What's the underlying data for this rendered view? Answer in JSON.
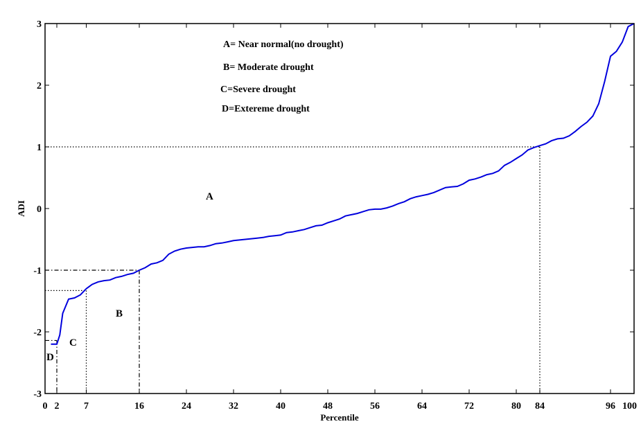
{
  "chart_data": {
    "type": "line",
    "xlabel": "Percentile",
    "ylabel": "ADI",
    "xlim": [
      0,
      100
    ],
    "ylim": [
      -3,
      3
    ],
    "x_ticks": [
      "0",
      "2",
      "7",
      "16",
      "24",
      "32",
      "40",
      "48",
      "56",
      "64",
      "72",
      "80",
      "84",
      "96",
      "100"
    ],
    "y_ticks": [
      "3",
      "2",
      "1",
      "0",
      "-1",
      "-2",
      "-3"
    ],
    "legend_text": [
      "A= Near normal(no drought)",
      "B= Moderate drought",
      "C=Severe drought",
      "D=Extereme drought"
    ],
    "region_labels": [
      "A",
      "B",
      "C",
      "D"
    ],
    "series": [
      {
        "color": "#0000dd",
        "x": [
          1,
          2,
          2.5,
          3,
          4,
          5,
          6,
          7,
          8,
          9,
          10,
          11,
          12,
          13,
          14,
          15,
          16,
          17,
          18,
          19,
          20,
          21,
          22,
          23,
          24,
          25,
          26,
          27,
          28,
          29,
          30,
          31,
          32,
          33,
          34,
          35,
          36,
          37,
          38,
          39,
          40,
          41,
          42,
          43,
          44,
          45,
          46,
          47,
          48,
          49,
          50,
          51,
          52,
          53,
          54,
          55,
          56,
          57,
          58,
          59,
          60,
          61,
          62,
          63,
          64,
          65,
          66,
          67,
          68,
          69,
          70,
          71,
          72,
          73,
          74,
          75,
          76,
          77,
          78,
          79,
          80,
          81,
          82,
          83,
          84,
          85,
          86,
          87,
          88,
          89,
          90,
          91,
          92,
          93,
          94,
          95,
          96,
          97,
          98,
          99,
          100
        ],
        "y": [
          -2.2,
          -2.2,
          -2.05,
          -1.7,
          -1.47,
          -1.45,
          -1.4,
          -1.3,
          -1.23,
          -1.19,
          -1.17,
          -1.16,
          -1.12,
          -1.1,
          -1.07,
          -1.05,
          -1.0,
          -0.96,
          -0.9,
          -0.88,
          -0.84,
          -0.74,
          -0.69,
          -0.66,
          -0.64,
          -0.63,
          -0.62,
          -0.62,
          -0.6,
          -0.57,
          -0.56,
          -0.54,
          -0.52,
          -0.51,
          -0.5,
          -0.49,
          -0.48,
          -0.47,
          -0.45,
          -0.44,
          -0.43,
          -0.39,
          -0.38,
          -0.36,
          -0.34,
          -0.31,
          -0.28,
          -0.27,
          -0.23,
          -0.2,
          -0.17,
          -0.12,
          -0.1,
          -0.08,
          -0.05,
          -0.02,
          -0.01,
          -0.01,
          0.01,
          0.04,
          0.08,
          0.11,
          0.16,
          0.19,
          0.21,
          0.23,
          0.26,
          0.3,
          0.34,
          0.35,
          0.36,
          0.4,
          0.46,
          0.48,
          0.51,
          0.55,
          0.57,
          0.61,
          0.7,
          0.75,
          0.81,
          0.87,
          0.95,
          0.99,
          1.02,
          1.05,
          1.1,
          1.13,
          1.14,
          1.18,
          1.25,
          1.33,
          1.4,
          1.5,
          1.7,
          2.06,
          2.47,
          2.55,
          2.7,
          2.95,
          3.0
        ]
      }
    ],
    "reference_lines": [
      {
        "style": "dotted",
        "from": [
          0,
          1
        ],
        "to": [
          84,
          1
        ]
      },
      {
        "style": "dotted",
        "from": [
          84,
          1
        ],
        "to": [
          84,
          -3
        ]
      },
      {
        "style": "dashdot",
        "from": [
          0,
          -1
        ],
        "to": [
          16,
          -1
        ]
      },
      {
        "style": "dashdot",
        "from": [
          16,
          -1
        ],
        "to": [
          16,
          -3
        ]
      },
      {
        "style": "dotted",
        "from": [
          0,
          -1.33
        ],
        "to": [
          7,
          -1.33
        ]
      },
      {
        "style": "dotted",
        "from": [
          7,
          -1.33
        ],
        "to": [
          7,
          -3
        ]
      },
      {
        "style": "dashdot",
        "from": [
          0,
          -2.14
        ],
        "to": [
          2,
          -2.14
        ]
      },
      {
        "style": "dashdot",
        "from": [
          2,
          -2.14
        ],
        "to": [
          2,
          -3
        ]
      }
    ],
    "grid": false
  }
}
